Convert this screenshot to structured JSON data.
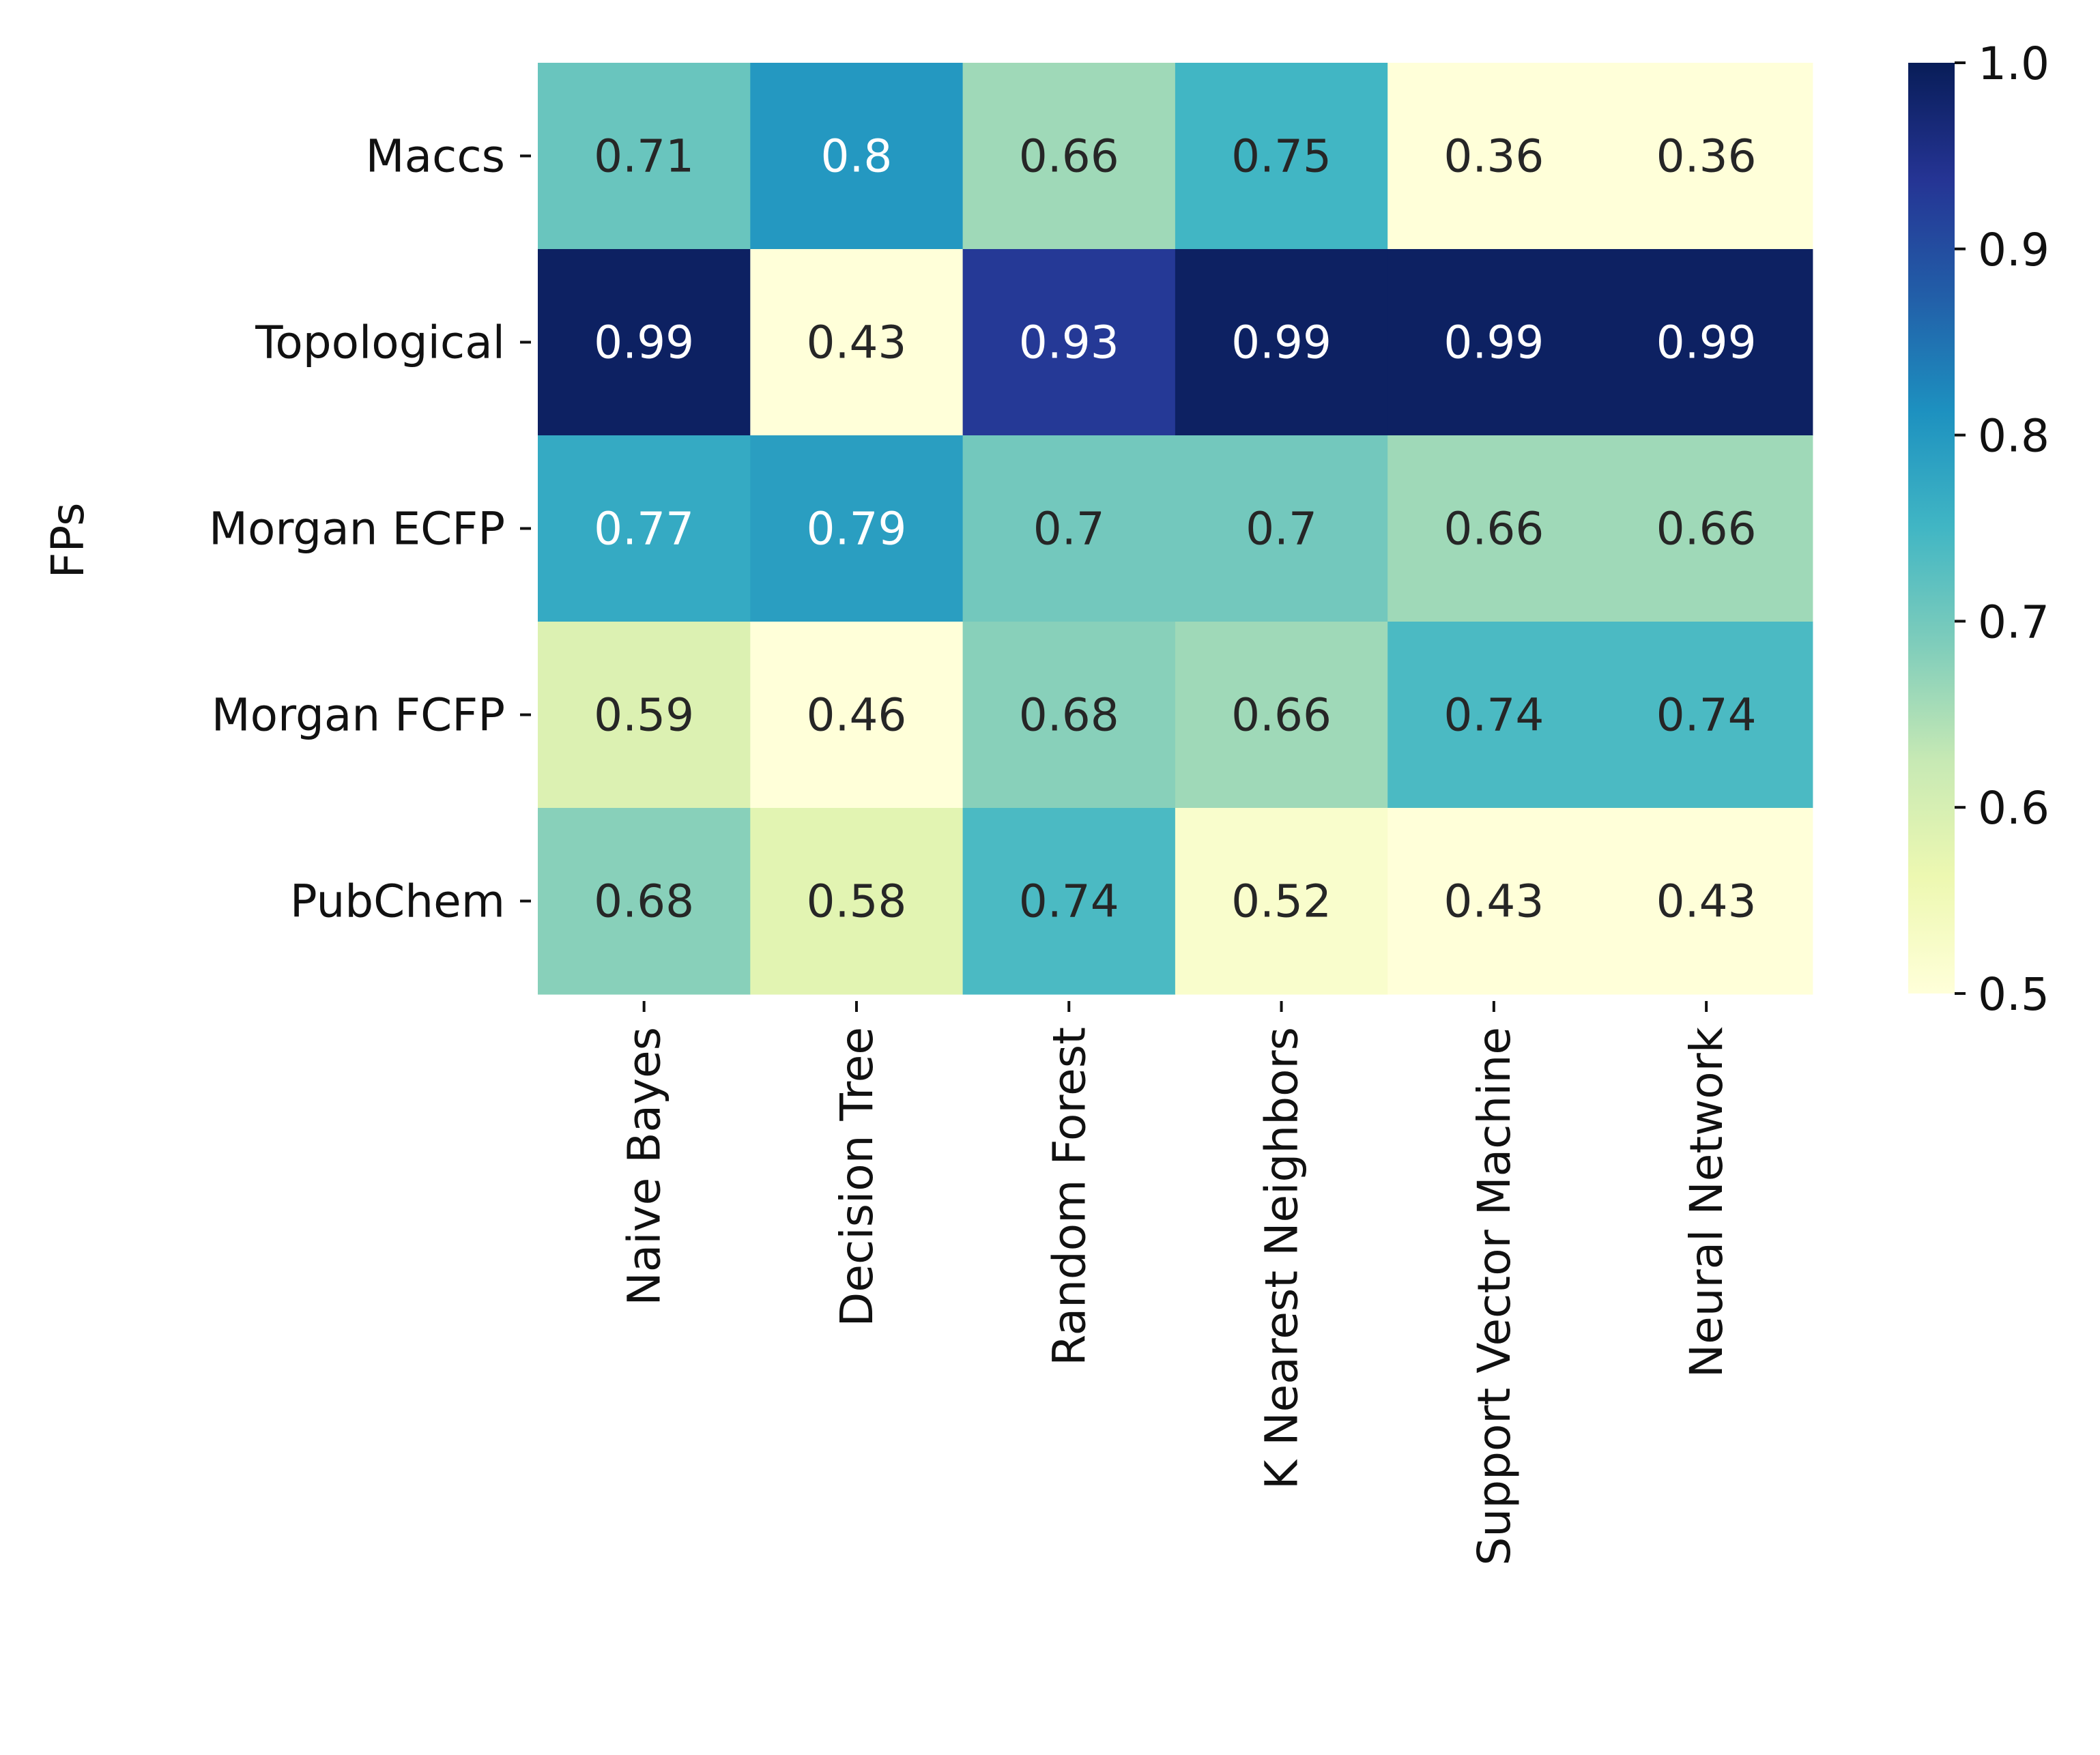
{
  "chart_data": {
    "type": "heatmap",
    "title": "",
    "ylabel": "FPs",
    "xlabel": "",
    "rows": [
      "Maccs",
      "Topological",
      "Morgan ECFP",
      "Morgan FCFP",
      "PubChem"
    ],
    "columns": [
      "Naive Bayes",
      "Decision Tree",
      "Random Forest",
      "K Nearest Neighbors",
      "Support Vector Machine",
      "Neural Network"
    ],
    "values": [
      [
        0.71,
        0.8,
        0.66,
        0.75,
        0.36,
        0.36
      ],
      [
        0.99,
        0.43,
        0.93,
        0.99,
        0.99,
        0.99
      ],
      [
        0.77,
        0.79,
        0.7,
        0.7,
        0.66,
        0.66
      ],
      [
        0.59,
        0.46,
        0.68,
        0.66,
        0.74,
        0.74
      ],
      [
        0.68,
        0.58,
        0.74,
        0.52,
        0.43,
        0.43
      ]
    ],
    "cell_labels": [
      [
        "0.71",
        "0.8",
        "0.66",
        "0.75",
        "0.36",
        "0.36"
      ],
      [
        "0.99",
        "0.43",
        "0.93",
        "0.99",
        "0.99",
        "0.99"
      ],
      [
        "0.77",
        "0.79",
        "0.7",
        "0.7",
        "0.66",
        "0.66"
      ],
      [
        "0.59",
        "0.46",
        "0.68",
        "0.66",
        "0.74",
        "0.74"
      ],
      [
        "0.68",
        "0.58",
        "0.74",
        "0.52",
        "0.43",
        "0.43"
      ]
    ],
    "colorbar": {
      "range": [
        0.5,
        1.0
      ],
      "ticks": [
        0.5,
        0.6,
        0.7,
        0.8,
        0.9,
        1.0
      ],
      "tick_labels": [
        "0.5",
        "0.6",
        "0.7",
        "0.8",
        "0.9",
        "1.0"
      ]
    },
    "colormap": "YlGnBu",
    "colormap_stops": [
      "#ffffd9",
      "#edf8b1",
      "#c7e9b4",
      "#7fcdbb",
      "#41b6c4",
      "#1d91c0",
      "#225ea8",
      "#253494",
      "#081d58"
    ],
    "annotation_dark_color": "#262626",
    "annotation_light_color": "#ffffff",
    "grid": false,
    "legend": "colorbar-right"
  }
}
